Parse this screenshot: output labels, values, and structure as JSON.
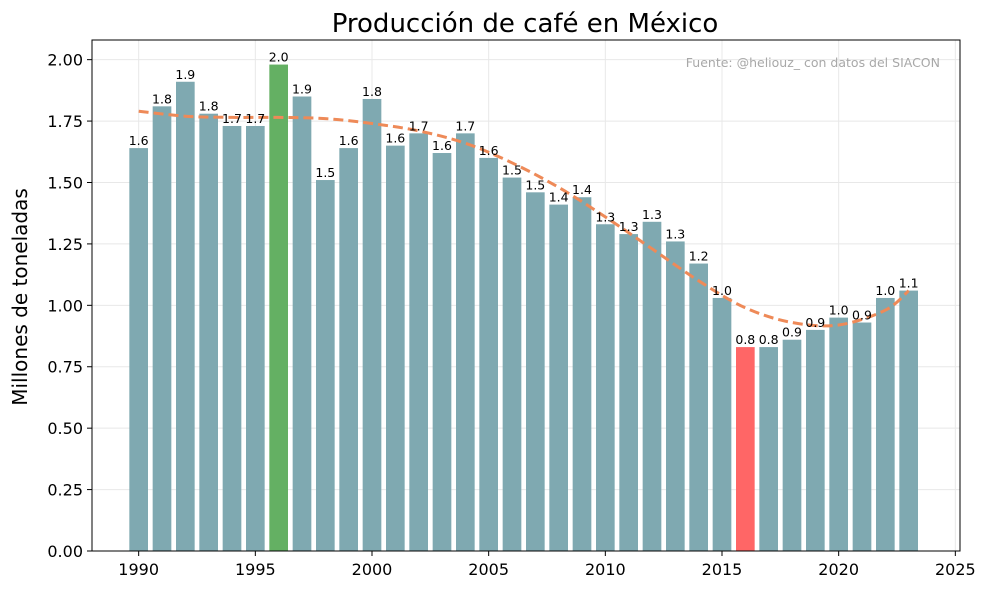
{
  "chart_data": {
    "type": "bar",
    "title": "Producción de café en México",
    "xlabel": "",
    "ylabel": "Millones de toneladas",
    "source_note": "Fuente: @heliouz_ con datos del SIACON",
    "xlim": [
      1988.0,
      2025.2
    ],
    "ylim": [
      0,
      2.08
    ],
    "x_ticks": [
      1990,
      1995,
      2000,
      2005,
      2010,
      2015,
      2020,
      2025
    ],
    "y_ticks": [
      "0.00",
      "0.25",
      "0.50",
      "0.75",
      "1.00",
      "1.25",
      "1.50",
      "1.75",
      "2.00"
    ],
    "grid": true,
    "colors": {
      "bar": "#7fa9b1",
      "max": "#64b063",
      "min": "#ff6666",
      "trend": "#ee8a58"
    },
    "years": [
      1990,
      1991,
      1992,
      1993,
      1994,
      1995,
      1996,
      1997,
      1998,
      1999,
      2000,
      2001,
      2002,
      2003,
      2004,
      2005,
      2006,
      2007,
      2008,
      2009,
      2010,
      2011,
      2012,
      2013,
      2014,
      2015,
      2016,
      2017,
      2018,
      2019,
      2020,
      2021,
      2022,
      2023
    ],
    "values": [
      1.64,
      1.81,
      1.91,
      1.78,
      1.73,
      1.73,
      1.98,
      1.85,
      1.51,
      1.64,
      1.84,
      1.65,
      1.7,
      1.62,
      1.7,
      1.6,
      1.52,
      1.46,
      1.41,
      1.44,
      1.33,
      1.29,
      1.34,
      1.26,
      1.17,
      1.03,
      0.83,
      0.83,
      0.86,
      0.9,
      0.95,
      0.93,
      1.03,
      1.06
    ],
    "labels": [
      "1.6",
      "1.8",
      "1.9",
      "1.8",
      "1.7",
      "1.7",
      "2.0",
      "1.9",
      "1.5",
      "1.6",
      "1.8",
      "1.6",
      "1.7",
      "1.6",
      "1.7",
      "1.6",
      "1.5",
      "1.5",
      "1.4",
      "1.4",
      "1.3",
      "1.3",
      "1.3",
      "1.3",
      "1.2",
      "1.0",
      "0.8",
      "0.8",
      "0.9",
      "0.9",
      "1.0",
      "0.9",
      "1.0",
      "1.1"
    ],
    "highlight": {
      "max_year": 1996,
      "min_year": 2016
    },
    "trend": {
      "x": [
        1990,
        1992,
        1994,
        1996,
        1998,
        2000,
        2002,
        2004,
        2006,
        2008,
        2010,
        2012,
        2014,
        2016,
        2018,
        2020,
        2022,
        2023
      ],
      "y": [
        1.79,
        1.77,
        1.765,
        1.765,
        1.76,
        1.74,
        1.71,
        1.66,
        1.58,
        1.48,
        1.36,
        1.23,
        1.1,
        0.99,
        0.93,
        0.92,
        0.98,
        1.06
      ]
    }
  }
}
